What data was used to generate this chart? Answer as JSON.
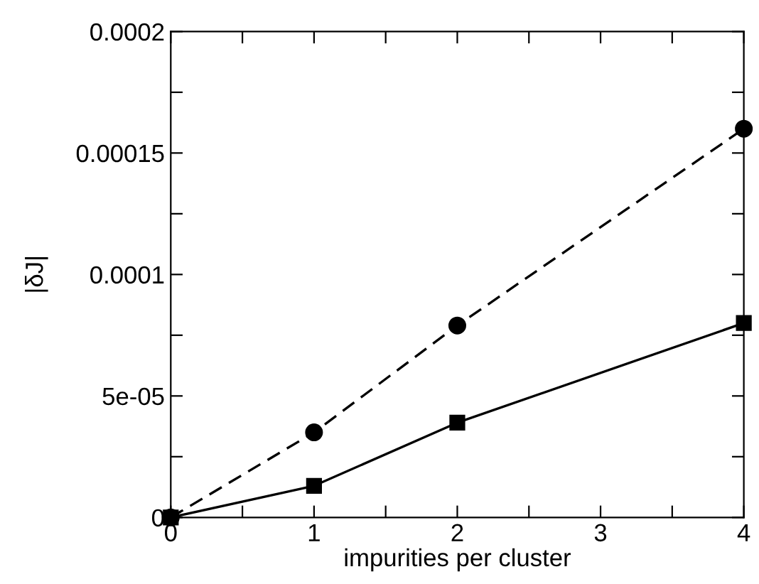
{
  "chart_data": {
    "type": "line",
    "xlabel": "impurities per cluster",
    "ylabel": "|δJ|",
    "x": [
      0,
      1,
      2,
      4
    ],
    "series": [
      {
        "color": "#000000",
        "marker": "circle",
        "line_style": "dashed",
        "values": [
          0,
          3.5e-05,
          7.9e-05,
          0.00016
        ]
      },
      {
        "color": "#000000",
        "marker": "square",
        "line_style": "solid",
        "values": [
          0,
          1.3e-05,
          3.9e-05,
          8e-05
        ]
      }
    ],
    "xlim": [
      0,
      4
    ],
    "xticks": [
      0,
      {
        "value": 0.5,
        "label": null
      },
      1,
      {
        "value": 1.5,
        "label": null
      },
      2,
      {
        "value": 2.5,
        "label": null
      },
      3,
      {
        "value": 3.5,
        "label": null
      },
      4
    ],
    "ylim": [
      0,
      0.0002
    ],
    "yticks": [
      0,
      {
        "value": 2.5e-05,
        "label": null
      },
      {
        "value": 5e-05,
        "label": "5e-05"
      },
      {
        "value": 7.5e-05,
        "label": null
      },
      {
        "value": 0.0001,
        "label": "0.0001"
      },
      {
        "value": 0.000125,
        "label": null
      },
      {
        "value": 0.00015,
        "label": "0.00015"
      },
      {
        "value": 0.000175,
        "label": null
      },
      {
        "value": 0.0002,
        "label": "0.0002"
      }
    ],
    "grid": false,
    "legend": false
  }
}
